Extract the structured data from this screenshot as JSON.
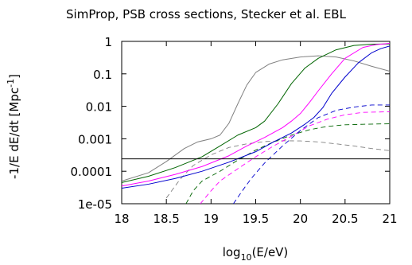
{
  "chart_data": {
    "type": "line",
    "title": "SimProp, PSB cross sections, Stecker et al. EBL",
    "xlabel": {
      "main": "log",
      "sub": "10",
      "rest": "(E/eV)"
    },
    "ylabel": {
      "main": "-1/E dE/dt [Mpc",
      "sup": "-1",
      "rest": "]"
    },
    "xlim": [
      18,
      21
    ],
    "ylim_log10": [
      -5,
      0
    ],
    "y_scale": "log",
    "grid": false,
    "legend": "none",
    "x_ticks": [
      {
        "value": 18,
        "label": "18"
      },
      {
        "value": 18.5,
        "label": "18.5"
      },
      {
        "value": 19,
        "label": "19"
      },
      {
        "value": 19.5,
        "label": "19.5"
      },
      {
        "value": 20,
        "label": "20"
      },
      {
        "value": 20.5,
        "label": "20.5"
      },
      {
        "value": 21,
        "label": "21"
      }
    ],
    "y_ticks": [
      {
        "value": 1,
        "label": "1"
      },
      {
        "value": 0.1,
        "label": "0.1"
      },
      {
        "value": 0.01,
        "label": "0.01"
      },
      {
        "value": 0.001,
        "label": "0.001"
      },
      {
        "value": 0.0001,
        "label": "0.0001"
      },
      {
        "value": 1e-05,
        "label": "1e-05"
      }
    ],
    "hline": {
      "y": 0.00024,
      "color": "#000000"
    },
    "series": [
      {
        "color": "#808080",
        "style": "solid",
        "width": 1.0,
        "points": [
          [
            18,
            5e-05
          ],
          [
            18.3,
            9e-05
          ],
          [
            18.5,
            0.0002
          ],
          [
            18.7,
            0.0005
          ],
          [
            18.85,
            0.0008
          ],
          [
            19,
            0.001
          ],
          [
            19.1,
            0.0013
          ],
          [
            19.2,
            0.003
          ],
          [
            19.3,
            0.012
          ],
          [
            19.4,
            0.045
          ],
          [
            19.5,
            0.11
          ],
          [
            19.65,
            0.2
          ],
          [
            19.8,
            0.27
          ],
          [
            20,
            0.33
          ],
          [
            20.2,
            0.36
          ],
          [
            20.4,
            0.33
          ],
          [
            20.6,
            0.25
          ],
          [
            20.8,
            0.17
          ],
          [
            21,
            0.12
          ]
        ]
      },
      {
        "color": "#808080",
        "style": "dashed",
        "width": 0.9,
        "points": [
          [
            18.5,
            1.5e-05
          ],
          [
            18.65,
            5.5e-05
          ],
          [
            18.8,
            0.00015
          ],
          [
            19,
            0.00032
          ],
          [
            19.2,
            0.00054
          ],
          [
            19.4,
            0.0007
          ],
          [
            19.6,
            0.00082
          ],
          [
            19.8,
            0.00087
          ],
          [
            20,
            0.00086
          ],
          [
            20.2,
            0.0008
          ],
          [
            20.4,
            0.0007
          ],
          [
            20.6,
            0.0006
          ],
          [
            20.8,
            0.0005
          ],
          [
            21,
            0.00043
          ]
        ]
      },
      {
        "color": "#006400",
        "style": "solid",
        "width": 1.0,
        "points": [
          [
            18,
            4.5e-05
          ],
          [
            18.3,
            7e-05
          ],
          [
            18.6,
            0.00013
          ],
          [
            18.9,
            0.00028
          ],
          [
            19.1,
            0.0006
          ],
          [
            19.3,
            0.0013
          ],
          [
            19.5,
            0.0022
          ],
          [
            19.6,
            0.0035
          ],
          [
            19.75,
            0.012
          ],
          [
            19.9,
            0.05
          ],
          [
            20.05,
            0.15
          ],
          [
            20.2,
            0.3
          ],
          [
            20.4,
            0.55
          ],
          [
            20.6,
            0.75
          ],
          [
            20.8,
            0.82
          ],
          [
            21,
            0.83
          ]
        ]
      },
      {
        "color": "#006400",
        "style": "dashed",
        "width": 0.9,
        "points": [
          [
            18.72,
            1e-05
          ],
          [
            18.8,
            2.5e-05
          ],
          [
            18.9,
            5e-05
          ],
          [
            19.1,
            0.0001
          ],
          [
            19.3,
            0.00022
          ],
          [
            19.5,
            0.00045
          ],
          [
            19.7,
            0.0008
          ],
          [
            19.9,
            0.0013
          ],
          [
            20.1,
            0.0019
          ],
          [
            20.3,
            0.0024
          ],
          [
            20.5,
            0.0027
          ],
          [
            20.7,
            0.0028
          ],
          [
            21,
            0.0029
          ]
        ]
      },
      {
        "color": "#ff00ff",
        "style": "solid",
        "width": 1.0,
        "points": [
          [
            18,
            3.5e-05
          ],
          [
            18.3,
            5e-05
          ],
          [
            18.6,
            8e-05
          ],
          [
            18.9,
            0.00014
          ],
          [
            19.2,
            0.0003
          ],
          [
            19.4,
            0.0006
          ],
          [
            19.6,
            0.0011
          ],
          [
            19.8,
            0.0022
          ],
          [
            19.9,
            0.0035
          ],
          [
            20,
            0.006
          ],
          [
            20.1,
            0.013
          ],
          [
            20.2,
            0.03
          ],
          [
            20.35,
            0.1
          ],
          [
            20.5,
            0.3
          ],
          [
            20.7,
            0.65
          ],
          [
            20.85,
            0.8
          ],
          [
            21,
            0.87
          ]
        ]
      },
      {
        "color": "#ff00ff",
        "style": "dashed",
        "width": 0.9,
        "points": [
          [
            18.88,
            1e-05
          ],
          [
            19,
            2.5e-05
          ],
          [
            19.1,
            5e-05
          ],
          [
            19.3,
            0.00012
          ],
          [
            19.5,
            0.00028
          ],
          [
            19.7,
            0.0006
          ],
          [
            19.9,
            0.0012
          ],
          [
            20.1,
            0.0025
          ],
          [
            20.3,
            0.004
          ],
          [
            20.5,
            0.0055
          ],
          [
            20.7,
            0.0065
          ],
          [
            21,
            0.0068
          ]
        ]
      },
      {
        "color": "#0000cd",
        "style": "solid",
        "width": 1.0,
        "points": [
          [
            18,
            3e-05
          ],
          [
            18.3,
            4e-05
          ],
          [
            18.6,
            6e-05
          ],
          [
            18.9,
            0.0001
          ],
          [
            19.2,
            0.00019
          ],
          [
            19.5,
            0.0004
          ],
          [
            19.7,
            0.0008
          ],
          [
            19.9,
            0.0015
          ],
          [
            20.05,
            0.0028
          ],
          [
            20.15,
            0.0045
          ],
          [
            20.25,
            0.009
          ],
          [
            20.35,
            0.025
          ],
          [
            20.5,
            0.08
          ],
          [
            20.65,
            0.22
          ],
          [
            20.8,
            0.45
          ],
          [
            20.9,
            0.6
          ],
          [
            21,
            0.72
          ]
        ]
      },
      {
        "color": "#0000cd",
        "style": "dashed",
        "width": 0.9,
        "points": [
          [
            19.25,
            1e-05
          ],
          [
            19.35,
            2.5e-05
          ],
          [
            19.45,
            6e-05
          ],
          [
            19.6,
            0.00018
          ],
          [
            19.8,
            0.0006
          ],
          [
            20,
            0.0018
          ],
          [
            20.2,
            0.0045
          ],
          [
            20.4,
            0.0075
          ],
          [
            20.6,
            0.0095
          ],
          [
            20.8,
            0.011
          ],
          [
            21,
            0.011
          ]
        ]
      }
    ]
  }
}
